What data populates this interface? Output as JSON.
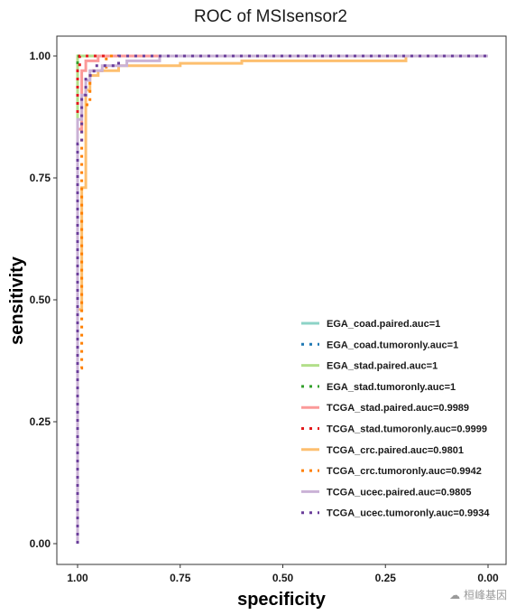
{
  "chart_data": {
    "type": "line",
    "title": "ROC of MSIsensor2",
    "xlabel": "specificity",
    "ylabel": "sensitivity",
    "xlim": [
      1.0,
      0.0
    ],
    "ylim": [
      0.0,
      1.0
    ],
    "x_reversed": true,
    "xticks": [
      "1.00",
      "0.75",
      "0.50",
      "0.25",
      "0.00"
    ],
    "yticks": [
      "0.00",
      "0.25",
      "0.50",
      "0.75",
      "1.00"
    ],
    "grid": false,
    "legend_position": "right",
    "series": [
      {
        "name": "EGA_coad.paired.auc=1",
        "color": "#8dd3c7",
        "dash": "solid",
        "x": [
          1.0,
          1.0,
          0.0
        ],
        "y": [
          0.0,
          1.0,
          1.0
        ]
      },
      {
        "name": "EGA_coad.tumoronly.auc=1",
        "color": "#1f78b4",
        "dash": "dotted",
        "x": [
          1.0,
          1.0,
          0.0
        ],
        "y": [
          0.0,
          1.0,
          1.0
        ]
      },
      {
        "name": "EGA_stad.paired.auc=1",
        "color": "#b2df8a",
        "dash": "solid",
        "x": [
          1.0,
          1.0,
          0.0
        ],
        "y": [
          0.0,
          1.0,
          1.0
        ]
      },
      {
        "name": "EGA_stad.tumoronly.auc=1",
        "color": "#33a02c",
        "dash": "dotted",
        "x": [
          1.0,
          1.0,
          0.0
        ],
        "y": [
          0.0,
          1.0,
          1.0
        ]
      },
      {
        "name": "TCGA_stad.paired.auc=0.9989",
        "color": "#fb9a99",
        "dash": "solid",
        "x": [
          1.0,
          1.0,
          0.99,
          0.99,
          0.98,
          0.98,
          0.95,
          0.95,
          0.0
        ],
        "y": [
          0.0,
          0.85,
          0.85,
          0.97,
          0.97,
          0.99,
          0.99,
          1.0,
          1.0
        ]
      },
      {
        "name": "TCGA_stad.tumoronly.auc=0.9999",
        "color": "#e31a1c",
        "dash": "dotted",
        "x": [
          1.0,
          1.0,
          0.995,
          0.995,
          0.0
        ],
        "y": [
          0.0,
          0.97,
          0.97,
          1.0,
          1.0
        ]
      },
      {
        "name": "TCGA_crc.paired.auc=0.9801",
        "color": "#fdbf6f",
        "dash": "solid",
        "x": [
          1.0,
          1.0,
          0.99,
          0.99,
          0.98,
          0.98,
          0.97,
          0.97,
          0.95,
          0.95,
          0.9,
          0.9,
          0.75,
          0.75,
          0.6,
          0.6,
          0.2,
          0.2
        ],
        "y": [
          0.0,
          0.48,
          0.48,
          0.73,
          0.73,
          0.93,
          0.93,
          0.96,
          0.96,
          0.97,
          0.97,
          0.98,
          0.98,
          0.985,
          0.985,
          0.99,
          0.99,
          1.0
        ]
      },
      {
        "name": "TCGA_crc.tumoronly.auc=0.9942",
        "color": "#ff7f00",
        "dash": "dotted",
        "x": [
          1.0,
          1.0,
          0.99,
          0.99,
          0.97,
          0.97,
          0.93,
          0.93,
          0.0
        ],
        "y": [
          0.0,
          0.36,
          0.36,
          0.9,
          0.9,
          0.97,
          0.97,
          1.0,
          1.0
        ]
      },
      {
        "name": "TCGA_ucec.paired.auc=0.9805",
        "color": "#cab2d6",
        "dash": "solid",
        "x": [
          1.0,
          1.0,
          0.99,
          0.99,
          0.98,
          0.98,
          0.97,
          0.97,
          0.94,
          0.94,
          0.88,
          0.88,
          0.8,
          0.8,
          0.0
        ],
        "y": [
          0.0,
          0.87,
          0.87,
          0.92,
          0.92,
          0.95,
          0.95,
          0.97,
          0.97,
          0.98,
          0.98,
          0.99,
          0.99,
          1.0,
          1.0
        ]
      },
      {
        "name": "TCGA_ucec.tumoronly.auc=0.9934",
        "color": "#6a3d9a",
        "dash": "dotted",
        "x": [
          1.0,
          1.0,
          0.99,
          0.99,
          0.98,
          0.98,
          0.96,
          0.96,
          0.9,
          0.9,
          0.0
        ],
        "y": [
          0.0,
          0.82,
          0.82,
          0.92,
          0.92,
          0.96,
          0.96,
          0.98,
          0.98,
          1.0,
          1.0
        ]
      }
    ]
  },
  "watermark": "桓峰基因"
}
